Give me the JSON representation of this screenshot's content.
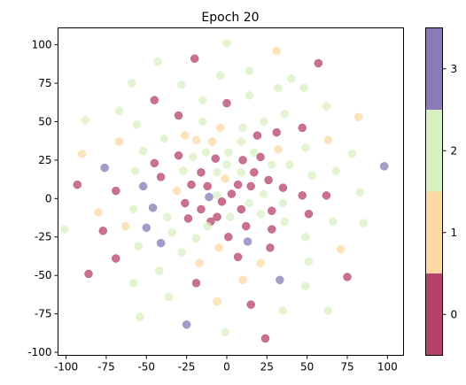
{
  "chart_data": {
    "type": "scatter",
    "title": "Epoch 20",
    "xlabel": "",
    "ylabel": "",
    "xlim": [
      -105,
      110
    ],
    "ylim": [
      -102,
      111
    ],
    "x_ticks": [
      -100,
      -75,
      -50,
      -25,
      0,
      25,
      50,
      75,
      100
    ],
    "y_ticks": [
      -100,
      -75,
      -50,
      -25,
      0,
      25,
      50,
      75,
      100
    ],
    "grid": false,
    "colorbar": {
      "ticks": [
        0,
        1,
        2,
        3
      ],
      "colors": [
        "#b5426b",
        "#fcd9a4",
        "#d9f0c3",
        "#8a7ab8"
      ]
    },
    "points": [
      {
        "x": 0,
        "y": 101,
        "c": 2
      },
      {
        "x": 31,
        "y": 96,
        "c": 1
      },
      {
        "x": -20,
        "y": 91,
        "c": 0
      },
      {
        "x": -43,
        "y": 89,
        "c": 2
      },
      {
        "x": 57,
        "y": 88,
        "c": 0
      },
      {
        "x": 14,
        "y": 83,
        "c": 2
      },
      {
        "x": -4,
        "y": 80,
        "c": 2
      },
      {
        "x": 40,
        "y": 78,
        "c": 2
      },
      {
        "x": -59,
        "y": 75,
        "c": 2
      },
      {
        "x": -28,
        "y": 74,
        "c": 2
      },
      {
        "x": 32,
        "y": 72,
        "c": 2
      },
      {
        "x": 48,
        "y": 72,
        "c": 2
      },
      {
        "x": 14,
        "y": 67,
        "c": 2
      },
      {
        "x": -45,
        "y": 64,
        "c": 0
      },
      {
        "x": -15,
        "y": 64,
        "c": 2
      },
      {
        "x": 0,
        "y": 62,
        "c": 0
      },
      {
        "x": 62,
        "y": 60,
        "c": 2
      },
      {
        "x": -67,
        "y": 57,
        "c": 2
      },
      {
        "x": 36,
        "y": 55,
        "c": 2
      },
      {
        "x": -30,
        "y": 54,
        "c": 0
      },
      {
        "x": 82,
        "y": 53,
        "c": 1
      },
      {
        "x": -88,
        "y": 51,
        "c": 2
      },
      {
        "x": 23,
        "y": 50,
        "c": 2
      },
      {
        "x": -15,
        "y": 50,
        "c": 2
      },
      {
        "x": -56,
        "y": 48,
        "c": 2
      },
      {
        "x": -4,
        "y": 46,
        "c": 1
      },
      {
        "x": 10,
        "y": 46,
        "c": 2
      },
      {
        "x": 47,
        "y": 46,
        "c": 0
      },
      {
        "x": 31,
        "y": 43,
        "c": 0
      },
      {
        "x": -26,
        "y": 41,
        "c": 1
      },
      {
        "x": 19,
        "y": 41,
        "c": 0
      },
      {
        "x": -39,
        "y": 39,
        "c": 2
      },
      {
        "x": 63,
        "y": 38,
        "c": 1
      },
      {
        "x": -67,
        "y": 37,
        "c": 1
      },
      {
        "x": -19,
        "y": 38,
        "c": 1
      },
      {
        "x": -9,
        "y": 37,
        "c": 1
      },
      {
        "x": 9,
        "y": 37,
        "c": 2
      },
      {
        "x": 49,
        "y": 33,
        "c": 2
      },
      {
        "x": 32,
        "y": 32,
        "c": 1
      },
      {
        "x": -52,
        "y": 31,
        "c": 2
      },
      {
        "x": -13,
        "y": 30,
        "c": 2
      },
      {
        "x": 1,
        "y": 30,
        "c": 2
      },
      {
        "x": 17,
        "y": 30,
        "c": 2
      },
      {
        "x": -30,
        "y": 28,
        "c": 0
      },
      {
        "x": -21,
        "y": 27,
        "c": 2
      },
      {
        "x": 78,
        "y": 29,
        "c": 2
      },
      {
        "x": -90,
        "y": 29,
        "c": 1
      },
      {
        "x": 21,
        "y": 27,
        "c": 0
      },
      {
        "x": -7,
        "y": 26,
        "c": 0
      },
      {
        "x": 10,
        "y": 25,
        "c": 0
      },
      {
        "x": -45,
        "y": 23,
        "c": 0
      },
      {
        "x": 0,
        "y": 22,
        "c": 2
      },
      {
        "x": 28,
        "y": 22,
        "c": 2
      },
      {
        "x": -76,
        "y": 20,
        "c": 3
      },
      {
        "x": 39,
        "y": 22,
        "c": 2
      },
      {
        "x": -57,
        "y": 18,
        "c": 2
      },
      {
        "x": -27,
        "y": 18,
        "c": 2
      },
      {
        "x": -16,
        "y": 17,
        "c": 0
      },
      {
        "x": 68,
        "y": 18,
        "c": 2
      },
      {
        "x": 98,
        "y": 21,
        "c": 3
      },
      {
        "x": -6,
        "y": 17,
        "c": 2
      },
      {
        "x": 9,
        "y": 17,
        "c": 2
      },
      {
        "x": 17,
        "y": 17,
        "c": 0
      },
      {
        "x": 53,
        "y": 15,
        "c": 2
      },
      {
        "x": -41,
        "y": 14,
        "c": 0
      },
      {
        "x": -1,
        "y": 13,
        "c": 1
      },
      {
        "x": 26,
        "y": 12,
        "c": 0
      },
      {
        "x": -22,
        "y": 9,
        "c": 0
      },
      {
        "x": 7,
        "y": 9,
        "c": 0
      },
      {
        "x": -52,
        "y": 8,
        "c": 3
      },
      {
        "x": 15,
        "y": 8,
        "c": 0
      },
      {
        "x": -12,
        "y": 8,
        "c": 0
      },
      {
        "x": -93,
        "y": 9,
        "c": 0
      },
      {
        "x": -31,
        "y": 5,
        "c": 1
      },
      {
        "x": 35,
        "y": 7,
        "c": 0
      },
      {
        "x": -69,
        "y": 5,
        "c": 0
      },
      {
        "x": 3,
        "y": 3,
        "c": 0
      },
      {
        "x": 23,
        "y": 3,
        "c": 2
      },
      {
        "x": 47,
        "y": 2,
        "c": 0
      },
      {
        "x": 62,
        "y": 2,
        "c": 0
      },
      {
        "x": -11,
        "y": 1,
        "c": 3
      },
      {
        "x": -6,
        "y": 2,
        "c": 2
      },
      {
        "x": 83,
        "y": 4,
        "c": 2
      },
      {
        "x": -3,
        "y": -2,
        "c": 0
      },
      {
        "x": -26,
        "y": -3,
        "c": 0
      },
      {
        "x": 14,
        "y": -3,
        "c": 2
      },
      {
        "x": 35,
        "y": -3,
        "c": 2
      },
      {
        "x": -46,
        "y": -6,
        "c": 3
      },
      {
        "x": -16,
        "y": -7,
        "c": 0
      },
      {
        "x": 9,
        "y": -7,
        "c": 0
      },
      {
        "x": 28,
        "y": -8,
        "c": 0
      },
      {
        "x": -58,
        "y": -7,
        "c": 2
      },
      {
        "x": 51,
        "y": -10,
        "c": 0
      },
      {
        "x": -80,
        "y": -9,
        "c": 1
      },
      {
        "x": 21,
        "y": -10,
        "c": 2
      },
      {
        "x": -37,
        "y": -12,
        "c": 2
      },
      {
        "x": -6,
        "y": -12,
        "c": 0
      },
      {
        "x": 2,
        "y": -12,
        "c": 2
      },
      {
        "x": -24,
        "y": -13,
        "c": 0
      },
      {
        "x": -10,
        "y": -15,
        "c": 0
      },
      {
        "x": 36,
        "y": -15,
        "c": 2
      },
      {
        "x": 66,
        "y": -15,
        "c": 2
      },
      {
        "x": 85,
        "y": -16,
        "c": 2
      },
      {
        "x": -63,
        "y": -18,
        "c": 1
      },
      {
        "x": -50,
        "y": -19,
        "c": 3
      },
      {
        "x": -12,
        "y": -18,
        "c": 2
      },
      {
        "x": 12,
        "y": -18,
        "c": 0
      },
      {
        "x": 28,
        "y": -20,
        "c": 0
      },
      {
        "x": -101,
        "y": -20,
        "c": 2
      },
      {
        "x": -77,
        "y": -21,
        "c": 0
      },
      {
        "x": -34,
        "y": -22,
        "c": 2
      },
      {
        "x": 49,
        "y": -25,
        "c": 2
      },
      {
        "x": 1,
        "y": -25,
        "c": 0
      },
      {
        "x": -19,
        "y": -26,
        "c": 2
      },
      {
        "x": 13,
        "y": -28,
        "c": 3
      },
      {
        "x": -41,
        "y": -29,
        "c": 3
      },
      {
        "x": -55,
        "y": -31,
        "c": 2
      },
      {
        "x": -5,
        "y": -32,
        "c": 1
      },
      {
        "x": 27,
        "y": -32,
        "c": 0
      },
      {
        "x": 71,
        "y": -33,
        "c": 1
      },
      {
        "x": -28,
        "y": -35,
        "c": 2
      },
      {
        "x": 7,
        "y": -38,
        "c": 0
      },
      {
        "x": -69,
        "y": -39,
        "c": 0
      },
      {
        "x": 51,
        "y": -41,
        "c": 2
      },
      {
        "x": -17,
        "y": -42,
        "c": 1
      },
      {
        "x": 21,
        "y": -42,
        "c": 1
      },
      {
        "x": -42,
        "y": -47,
        "c": 2
      },
      {
        "x": -86,
        "y": -49,
        "c": 0
      },
      {
        "x": 75,
        "y": -51,
        "c": 0
      },
      {
        "x": 10,
        "y": -53,
        "c": 1
      },
      {
        "x": 33,
        "y": -53,
        "c": 3
      },
      {
        "x": -58,
        "y": -55,
        "c": 2
      },
      {
        "x": -19,
        "y": -55,
        "c": 0
      },
      {
        "x": 49,
        "y": -57,
        "c": 2
      },
      {
        "x": -36,
        "y": -64,
        "c": 2
      },
      {
        "x": -6,
        "y": -67,
        "c": 1
      },
      {
        "x": 15,
        "y": -69,
        "c": 0
      },
      {
        "x": 35,
        "y": -73,
        "c": 2
      },
      {
        "x": 63,
        "y": -73,
        "c": 2
      },
      {
        "x": -54,
        "y": -77,
        "c": 2
      },
      {
        "x": -25,
        "y": -82,
        "c": 3
      },
      {
        "x": -1,
        "y": -87,
        "c": 2
      },
      {
        "x": 24,
        "y": -91,
        "c": 0
      }
    ]
  }
}
